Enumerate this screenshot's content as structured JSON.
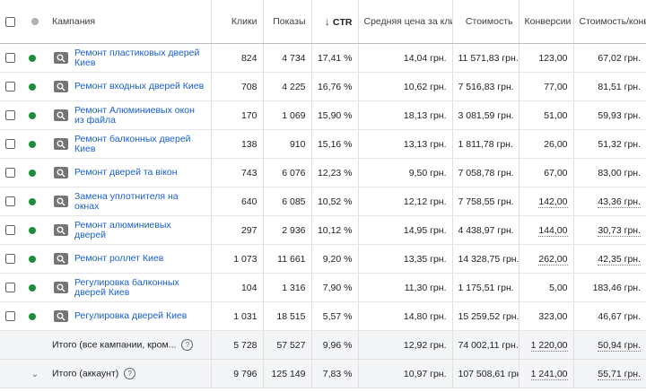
{
  "header": {
    "campaign": "Кампания",
    "clicks": "Клики",
    "impressions": "Показы",
    "sort_arrow": "↓",
    "ctr": "CTR",
    "avg_cpc": "Средняя цена за клик",
    "cost": "Стоимость",
    "conversions": "Конверсии",
    "cost_per_conv": "Стоимость/конв."
  },
  "rows": [
    {
      "name": "Ремонт пластиковых дверей Киев",
      "clicks": "824",
      "impressions": "4 734",
      "ctr": "17,41 %",
      "avg_cpc": "14,04 грн.",
      "cost": "11 571,83 грн.",
      "conversions": "123,00",
      "cost_per_conv": "67,02 грн."
    },
    {
      "name": "Ремонт входных дверей Киев",
      "clicks": "708",
      "impressions": "4 225",
      "ctr": "16,76 %",
      "avg_cpc": "10,62 грн.",
      "cost": "7 516,83 грн.",
      "conversions": "77,00",
      "cost_per_conv": "81,51 грн."
    },
    {
      "name": "Ремонт Алюминиевых окон из файла",
      "clicks": "170",
      "impressions": "1 069",
      "ctr": "15,90 %",
      "avg_cpc": "18,13 грн.",
      "cost": "3 081,59 грн.",
      "conversions": "51,00",
      "cost_per_conv": "59,93 грн."
    },
    {
      "name": "Ремонт балконных дверей Киев",
      "clicks": "138",
      "impressions": "910",
      "ctr": "15,16 %",
      "avg_cpc": "13,13 грн.",
      "cost": "1 811,78 грн.",
      "conversions": "26,00",
      "cost_per_conv": "51,32 грн."
    },
    {
      "name": "Ремонт дверей та вікон",
      "clicks": "743",
      "impressions": "6 076",
      "ctr": "12,23 %",
      "avg_cpc": "9,50 грн.",
      "cost": "7 058,78 грн.",
      "conversions": "67,00",
      "cost_per_conv": "83,00 грн."
    },
    {
      "name": "Замена уплотнителя на окнах",
      "clicks": "640",
      "impressions": "6 085",
      "ctr": "10,52 %",
      "avg_cpc": "12,12 грн.",
      "cost": "7 758,55 грн.",
      "conversions": "142,00",
      "cost_per_conv": "43,36 грн."
    },
    {
      "name": "Ремонт алюминиевых дверей",
      "clicks": "297",
      "impressions": "2 936",
      "ctr": "10,12 %",
      "avg_cpc": "14,95 грн.",
      "cost": "4 438,97 грн.",
      "conversions": "144,00",
      "cost_per_conv": "30,73 грн."
    },
    {
      "name": "Ремонт роллет Киев",
      "clicks": "1 073",
      "impressions": "11 661",
      "ctr": "9,20 %",
      "avg_cpc": "13,35 грн.",
      "cost": "14 328,75 грн.",
      "conversions": "262,00",
      "cost_per_conv": "42,35 грн."
    },
    {
      "name": "Регулировка балконных дверей Киев",
      "clicks": "104",
      "impressions": "1 316",
      "ctr": "7,90 %",
      "avg_cpc": "11,30 грн.",
      "cost": "1 175,51 грн.",
      "conversions": "5,00",
      "cost_per_conv": "183,46 грн."
    },
    {
      "name": "Регулировка дверей Киев",
      "clicks": "1 031",
      "impressions": "18 515",
      "ctr": "5,57 %",
      "avg_cpc": "14,80 грн.",
      "cost": "15 259,52 грн.",
      "conversions": "323,00",
      "cost_per_conv": "46,67 грн."
    }
  ],
  "totals": [
    {
      "label": "Итого (все кампании, кром...",
      "clicks": "5 728",
      "impressions": "57 527",
      "ctr": "9,96 %",
      "avg_cpc": "12,92 грн.",
      "cost": "74 002,11 грн.",
      "conversions": "1 220,00",
      "cost_per_conv": "50,94 грн."
    },
    {
      "label": "Итого (аккаунт)",
      "clicks": "9 796",
      "impressions": "125 149",
      "ctr": "7,83 %",
      "avg_cpc": "10,97 грн.",
      "cost": "107 508,61 грн.",
      "conversions": "1 241,00",
      "cost_per_conv": "55,71 грн."
    }
  ],
  "icons": {
    "help": "?",
    "chevron": "⌄",
    "search": "search-icon"
  },
  "colors": {
    "link": "#1a5fc9",
    "status_enabled": "#1e8e3e",
    "status_header": "#b0b0b0",
    "icon_bg": "#757575",
    "totals_bg": "#f3f5f7"
  }
}
